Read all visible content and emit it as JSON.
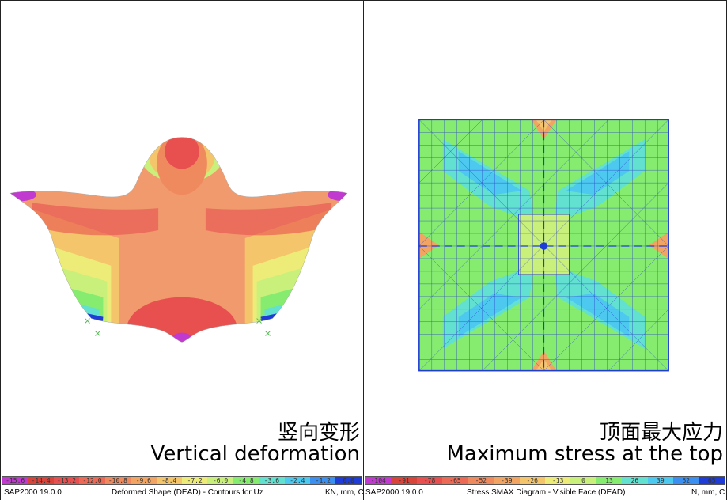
{
  "left": {
    "caption_zh": "竖向变形",
    "caption_en": "Vertical deformation",
    "legend": [
      "-15.6",
      "-14.4",
      "-13.2",
      "-12.0",
      "-10.8",
      "-9.6",
      "-8.4",
      "-7.2",
      "-6.0",
      "-4.8",
      "-3.6",
      "-2.4",
      "-1.2",
      "0.0"
    ],
    "legend_colors": [
      "#c03ad0",
      "#d9443a",
      "#e85050",
      "#ec6a55",
      "#ef8a5e",
      "#f2a462",
      "#f4c56a",
      "#eeec78",
      "#c9f07a",
      "#86ec70",
      "#62e0d0",
      "#4dc8ef",
      "#3b8ff0",
      "#1f3cd6"
    ],
    "status_app": "SAP2000 19.0.0",
    "status_title": "Deformed Shape (DEAD) - Contours for Uz",
    "status_units": "KN, mm, C"
  },
  "right": {
    "caption_zh": "顶面最大应力",
    "caption_en": "Maximum stress at the top",
    "legend": [
      "-104",
      "-91",
      "-78",
      "-65",
      "-52",
      "-39",
      "-26",
      "-13",
      "0",
      "13",
      "26",
      "39",
      "52",
      "65"
    ],
    "legend_colors": [
      "#c03ad0",
      "#d9443a",
      "#e85050",
      "#ec6a55",
      "#ef8a5e",
      "#f2a462",
      "#f4c56a",
      "#eeec78",
      "#c9f07a",
      "#86ec70",
      "#62e0d0",
      "#4dc8ef",
      "#3b8ff0",
      "#1f3cd6"
    ],
    "status_app": "SAP2000 19.0.0",
    "status_title": "Stress SMAX Diagram - Visible Face   (DEAD)",
    "status_units": "N, mm, C"
  }
}
